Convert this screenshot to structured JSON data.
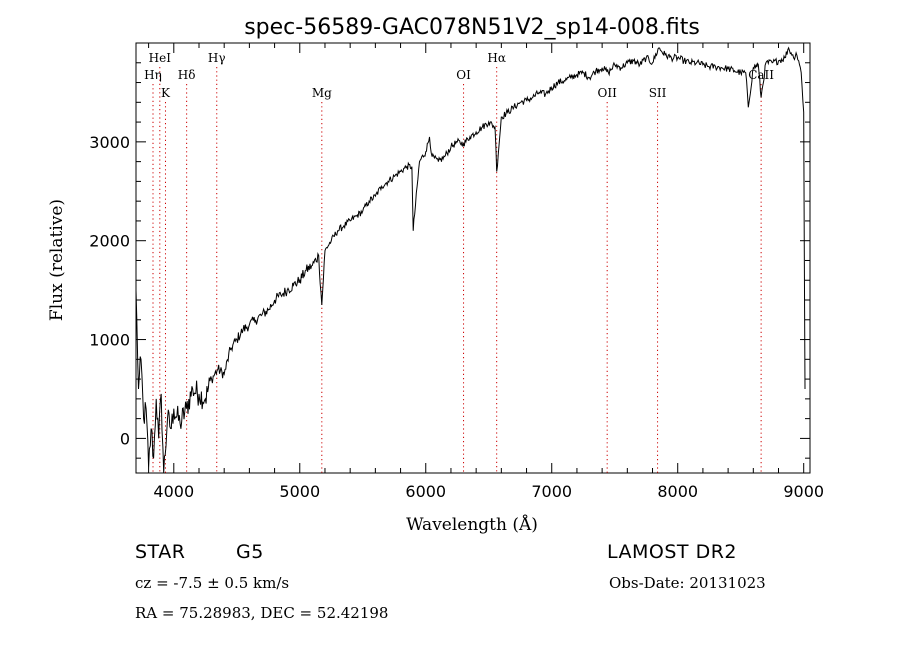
{
  "chart_data": {
    "type": "line",
    "title": "spec-56589-GAC078N51V2_sp14-008.fits",
    "xlabel": "Wavelength (Å)",
    "ylabel": "Flux (relative)",
    "xlim": [
      3700,
      9050
    ],
    "ylim": [
      -350,
      4000
    ],
    "x_ticks": [
      4000,
      5000,
      6000,
      7000,
      8000,
      9000
    ],
    "y_ticks": [
      0,
      1000,
      2000,
      3000
    ],
    "grid": false,
    "line_color": "#000000",
    "marker_color": "#cc0000",
    "series": [
      {
        "x": [
          3700,
          3720,
          3740,
          3760,
          3780,
          3800,
          3820,
          3840,
          3860,
          3880,
          3900,
          3920,
          3950,
          3980,
          4000,
          4050,
          4100,
          4150,
          4200,
          4250,
          4300,
          4350,
          4400,
          4450,
          4500,
          4550,
          4600,
          4650,
          4700,
          4750,
          4800,
          4850,
          4900,
          4950,
          5000,
          5050,
          5100,
          5150,
          5175,
          5200,
          5250,
          5300,
          5350,
          5400,
          5450,
          5500,
          5550,
          5600,
          5650,
          5700,
          5750,
          5800,
          5850,
          5890,
          5900,
          5950,
          6000,
          6030,
          6050,
          6100,
          6150,
          6200,
          6250,
          6300,
          6350,
          6400,
          6450,
          6500,
          6550,
          6563,
          6600,
          6650,
          6700,
          6750,
          6800,
          6850,
          6900,
          6950,
          7000,
          7050,
          7100,
          7150,
          7200,
          7250,
          7300,
          7350,
          7400,
          7450,
          7500,
          7550,
          7600,
          7650,
          7700,
          7750,
          7800,
          7850,
          7900,
          7950,
          8000,
          8050,
          8100,
          8150,
          8200,
          8250,
          8300,
          8350,
          8400,
          8450,
          8500,
          8540,
          8560,
          8600,
          8640,
          8662,
          8700,
          8750,
          8800,
          8850,
          8880,
          8900,
          8920,
          8940,
          8960,
          8980,
          9000,
          9010
        ],
        "y": [
          1500,
          500,
          800,
          200,
          300,
          -300,
          100,
          -200,
          400,
          0,
          450,
          -350,
          200,
          100,
          300,
          150,
          300,
          500,
          450,
          400,
          600,
          700,
          650,
          900,
          1000,
          1100,
          1150,
          1200,
          1250,
          1300,
          1400,
          1450,
          1500,
          1550,
          1600,
          1700,
          1750,
          1850,
          1350,
          1900,
          2000,
          2100,
          2150,
          2200,
          2250,
          2300,
          2400,
          2450,
          2550,
          2600,
          2650,
          2700,
          2750,
          2750,
          2100,
          2800,
          2900,
          3050,
          2850,
          2800,
          2850,
          2950,
          3000,
          2980,
          3050,
          3100,
          3150,
          3200,
          3150,
          2700,
          3250,
          3300,
          3350,
          3400,
          3420,
          3450,
          3500,
          3480,
          3550,
          3600,
          3620,
          3650,
          3680,
          3700,
          3650,
          3720,
          3750,
          3700,
          3780,
          3750,
          3800,
          3820,
          3780,
          3850,
          3800,
          3950,
          3880,
          3850,
          3850,
          3820,
          3800,
          3800,
          3780,
          3760,
          3760,
          3750,
          3740,
          3720,
          3700,
          3700,
          3350,
          3750,
          3780,
          3450,
          3800,
          3800,
          3820,
          3850,
          3950,
          3900,
          3850,
          3900,
          3820,
          3700,
          3300,
          500
        ]
      }
    ],
    "lines": [
      {
        "label": "HeI",
        "x": 3889,
        "row": 1
      },
      {
        "label": "Hη",
        "x": 3835,
        "row": 2
      },
      {
        "label": "K",
        "x": 3934,
        "row": 3
      },
      {
        "label": "Hδ",
        "x": 4102,
        "row": 2
      },
      {
        "label": "Hγ",
        "x": 4341,
        "row": 1
      },
      {
        "label": "Mg",
        "x": 5175,
        "row": 3
      },
      {
        "label": "OI",
        "x": 6300,
        "row": 2
      },
      {
        "label": "Hα",
        "x": 6563,
        "row": 1
      },
      {
        "label": "OII",
        "x": 7440,
        "row": 3
      },
      {
        "label": "SII",
        "x": 7840,
        "row": 3
      },
      {
        "label": "CaII",
        "x": 8662,
        "row": 2
      }
    ]
  },
  "info": {
    "class_label": "STAR",
    "subclass_label": "G5",
    "survey": "LAMOST DR2",
    "cz": "cz = -7.5 ± 0.5 km/s",
    "obs_date": "Obs-Date: 20131023",
    "coords": "RA =  75.28983, DEC =  52.42198"
  }
}
